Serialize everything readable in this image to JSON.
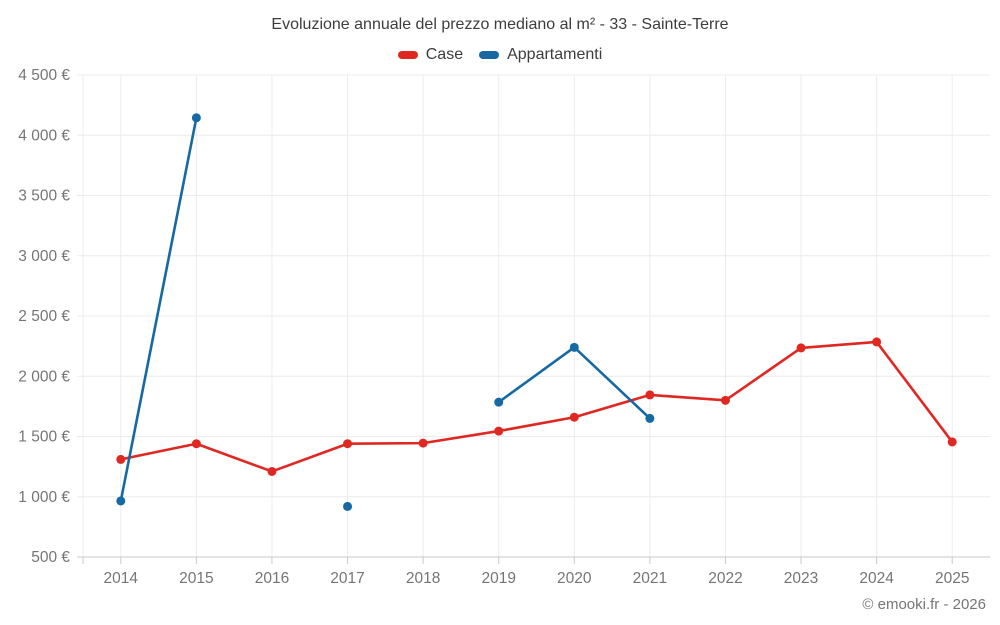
{
  "title": "Evoluzione annuale del prezzo mediano al m² - 33 - Sainte-Terre",
  "copyright": "© emooki.fr - 2026",
  "legend": {
    "items": [
      {
        "label": "Case",
        "color": "#e02823"
      },
      {
        "label": "Appartamenti",
        "color": "#1669a2"
      }
    ]
  },
  "colors": {
    "case_red": "#e02823",
    "apartments_blue": "#1669a2",
    "gridline": "#ececec",
    "axis_line": "#c9c9c9",
    "tick_label": "#757575",
    "title_text": "#3d3d3d"
  },
  "chart_data": {
    "type": "line",
    "title": "Evoluzione annuale del prezzo mediano al m² - 33 - Sainte-Terre",
    "xlabel": "",
    "ylabel": "",
    "x": [
      "2014",
      "2015",
      "2016",
      "2017",
      "2018",
      "2019",
      "2020",
      "2021",
      "2022",
      "2023",
      "2024",
      "2025"
    ],
    "series": [
      {
        "name": "Case",
        "color": "#e02823",
        "values": [
          1310,
          1440,
          1210,
          1440,
          1445,
          1545,
          1660,
          1845,
          1800,
          2235,
          2285,
          1455
        ]
      },
      {
        "name": "Appartamenti",
        "color": "#1669a2",
        "values": [
          965,
          4145,
          null,
          920,
          null,
          1785,
          2240,
          1650,
          null,
          null,
          null,
          null
        ]
      }
    ],
    "ylim": [
      500,
      4500
    ],
    "y_ticks": [
      {
        "value": 500,
        "label": "500 €"
      },
      {
        "value": 1000,
        "label": "1 000 €"
      },
      {
        "value": 1500,
        "label": "1 500 €"
      },
      {
        "value": 2000,
        "label": "2 000 €"
      },
      {
        "value": 2500,
        "label": "2 500 €"
      },
      {
        "value": 3000,
        "label": "3 000 €"
      },
      {
        "value": 3500,
        "label": "3 500 €"
      },
      {
        "value": 4000,
        "label": "4 000 €"
      },
      {
        "value": 4500,
        "label": "4 500 €"
      }
    ],
    "grid": true,
    "legend_position": "top"
  }
}
